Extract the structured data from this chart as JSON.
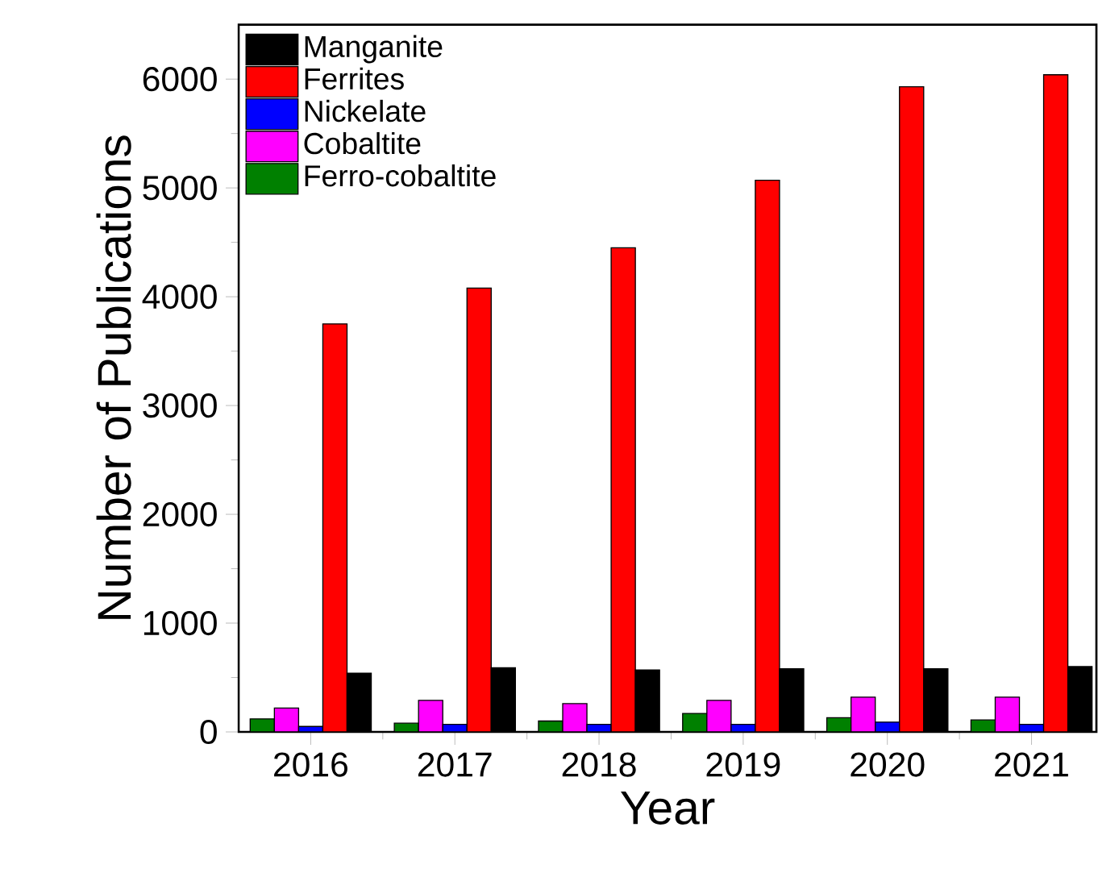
{
  "chart_data": {
    "type": "bar",
    "xlabel": "Year",
    "ylabel": "Number of Publications",
    "categories": [
      "2016",
      "2017",
      "2018",
      "2019",
      "2020",
      "2021"
    ],
    "series": [
      {
        "name": "Ferro-cobaltite",
        "color": "#008000",
        "values": [
          120,
          80,
          100,
          170,
          130,
          110
        ]
      },
      {
        "name": "Cobaltite",
        "color": "#ff00ff",
        "values": [
          220,
          290,
          260,
          290,
          320,
          320
        ]
      },
      {
        "name": "Nickelate",
        "color": "#0000ff",
        "values": [
          50,
          70,
          70,
          70,
          90,
          70
        ]
      },
      {
        "name": "Ferrites",
        "color": "#ff0000",
        "values": [
          3750,
          4080,
          4450,
          5070,
          5930,
          6040
        ]
      },
      {
        "name": "Manganite",
        "color": "#000000",
        "values": [
          540,
          590,
          570,
          580,
          580,
          600
        ]
      }
    ],
    "ylim": [
      0,
      6500
    ],
    "yticks": [
      0,
      1000,
      2000,
      3000,
      4000,
      5000,
      6000
    ],
    "legend": "top left"
  }
}
